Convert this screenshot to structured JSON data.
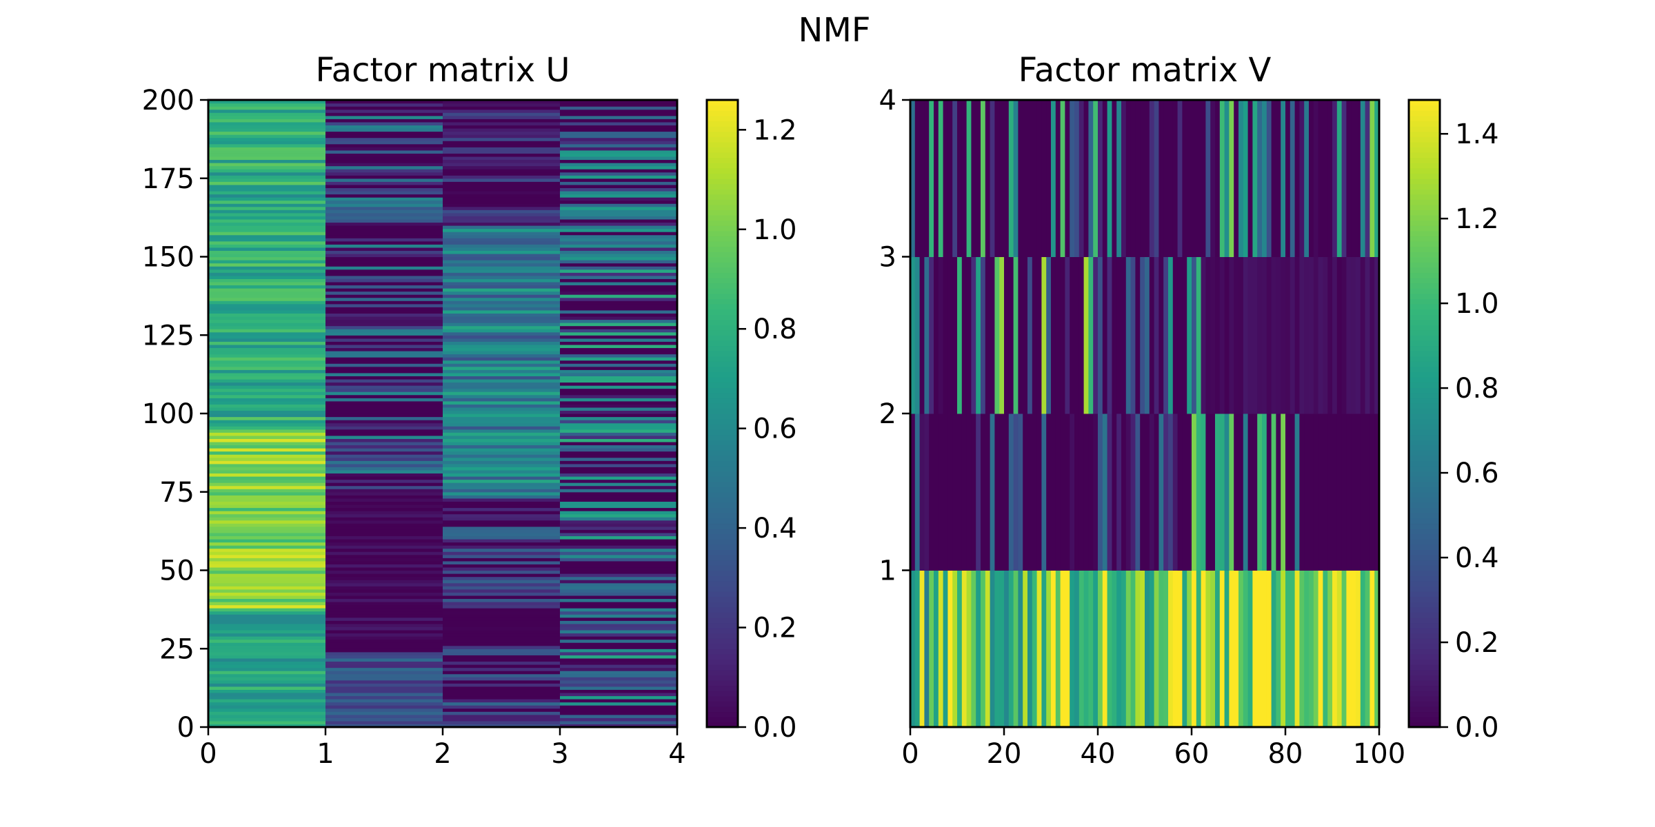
{
  "figure": {
    "suptitle": "NMF"
  },
  "chart_data": [
    {
      "type": "heatmap",
      "title": "Factor matrix U",
      "xlabel": "",
      "ylabel": "",
      "xlim": [
        0,
        4
      ],
      "ylim": [
        0,
        200
      ],
      "x_tick_labels": [
        "0",
        "1",
        "2",
        "3",
        "4"
      ],
      "y_tick_labels": [
        "0",
        "25",
        "50",
        "75",
        "100",
        "125",
        "150",
        "175",
        "200"
      ],
      "rows": 200,
      "cols": 4,
      "colormap": "viridis",
      "colorbar": {
        "min": 0.0,
        "max": 1.26,
        "tick_labels": [
          "0.0",
          "0.2",
          "0.4",
          "0.6",
          "0.8",
          "1.0",
          "1.2"
        ]
      },
      "column_value_profile": [
        {
          "column": "0–1",
          "row_range": [
            0,
            38
          ],
          "typical_range": [
            0.55,
            0.9
          ]
        },
        {
          "column": "0–1",
          "row_range": [
            38,
            95
          ],
          "typical_range": [
            0.85,
            1.2
          ]
        },
        {
          "column": "0–1",
          "row_range": [
            95,
            200
          ],
          "typical_range": [
            0.6,
            0.95
          ]
        },
        {
          "column": "1–2",
          "row_range": [
            0,
            24
          ],
          "typical_range": [
            0.15,
            0.45
          ]
        },
        {
          "column": "1–2",
          "row_range": [
            24,
            76
          ],
          "typical_range": [
            0.0,
            0.1
          ]
        },
        {
          "column": "1–2",
          "row_range": [
            76,
            200
          ],
          "typical_range": [
            0.0,
            0.6
          ]
        },
        {
          "column": "2–3",
          "row_range": [
            0,
            73
          ],
          "typical_range": [
            0.0,
            0.45
          ]
        },
        {
          "column": "2–3",
          "row_range": [
            73,
            160
          ],
          "typical_range": [
            0.3,
            0.75
          ]
        },
        {
          "column": "2–3",
          "row_range": [
            160,
            200
          ],
          "typical_range": [
            0.0,
            0.3
          ]
        },
        {
          "column": "3–4",
          "row_range": [
            0,
            200
          ],
          "typical_range": [
            0.0,
            0.8
          ]
        }
      ]
    },
    {
      "type": "heatmap",
      "title": "Factor matrix V",
      "xlabel": "",
      "ylabel": "",
      "xlim": [
        0,
        100
      ],
      "ylim": [
        0,
        4
      ],
      "x_tick_labels": [
        "0",
        "20",
        "40",
        "60",
        "80",
        "100"
      ],
      "y_tick_labels": [
        "1",
        "2",
        "3",
        "4"
      ],
      "rows": 4,
      "cols": 100,
      "colormap": "viridis",
      "colorbar": {
        "min": 0.0,
        "max": 1.48,
        "tick_labels": [
          "0.0",
          "0.2",
          "0.4",
          "0.6",
          "0.8",
          "1.0",
          "1.2",
          "1.4"
        ]
      },
      "row_value_profile": [
        {
          "row": "0–1",
          "typical_range": [
            0.6,
            1.48
          ]
        },
        {
          "row": "1–2",
          "column_range": [
            0,
            60
          ],
          "typical_range": [
            0.0,
            0.6
          ]
        },
        {
          "row": "1–2",
          "column_range": [
            60,
            83
          ],
          "typical_range": [
            0.6,
            1.2
          ]
        },
        {
          "row": "1–2",
          "column_range": [
            83,
            100
          ],
          "typical_range": [
            0.0,
            0.0
          ]
        },
        {
          "row": "2–3",
          "column_range": [
            0,
            62
          ],
          "typical_range": [
            0.0,
            1.3
          ]
        },
        {
          "row": "2–3",
          "column_range": [
            62,
            100
          ],
          "typical_range": [
            0.0,
            0.1
          ]
        },
        {
          "row": "3–4",
          "typical_range": [
            0.0,
            1.2
          ]
        }
      ]
    }
  ]
}
